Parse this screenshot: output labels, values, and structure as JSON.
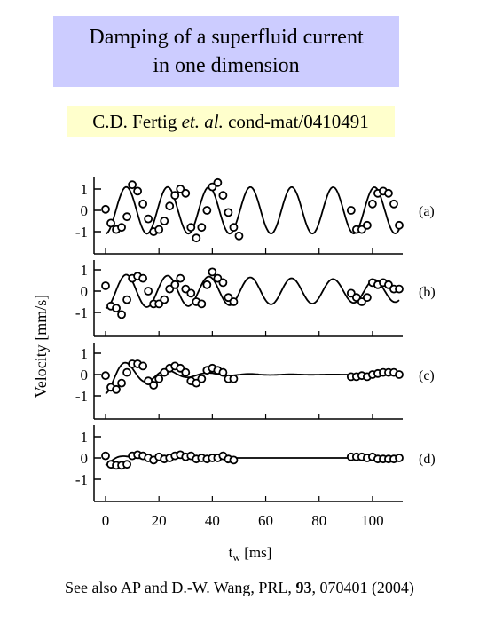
{
  "title": {
    "line1": "Damping of a superfluid current",
    "line2": "in one dimension"
  },
  "citation": {
    "authors": "C.D. Fertig",
    "etal": "et. al.",
    "ref": "cond-mat/0410491"
  },
  "footer": {
    "prefix": "See also AP and D.-W. Wang, PRL, ",
    "volume": "93",
    "suffix": ", 070401 (2004)"
  },
  "chart_data": {
    "type": "line",
    "xlabel": "t",
    "xlabel_sub": "w",
    "xlabel_unit": "[ms]",
    "ylabel": "Velocity",
    "ylabel_unit": "[mm/s]",
    "xlim": [
      0,
      110
    ],
    "ylim": [
      -1.5,
      1.5
    ],
    "xticks": [
      "0",
      "20",
      "40",
      "60",
      "80",
      "100"
    ],
    "yticks": [
      "1",
      "0",
      "-1"
    ],
    "panels": [
      {
        "label": "(a)",
        "fit": {
          "amplitude": 1.1,
          "decay_ms": 10000,
          "period_ms": 15.5,
          "phase": 1.57,
          "offset": 0
        },
        "points": [
          [
            0,
            0.05
          ],
          [
            2,
            -0.6
          ],
          [
            4,
            -0.9
          ],
          [
            6,
            -0.8
          ],
          [
            8,
            -0.3
          ],
          [
            10,
            1.2
          ],
          [
            12,
            0.9
          ],
          [
            14,
            0.3
          ],
          [
            16,
            -0.4
          ],
          [
            18,
            -1.0
          ],
          [
            20,
            -0.9
          ],
          [
            22,
            -0.5
          ],
          [
            24,
            0.2
          ],
          [
            26,
            0.7
          ],
          [
            28,
            1.0
          ],
          [
            30,
            0.8
          ],
          [
            32,
            -0.8
          ],
          [
            34,
            -1.3
          ],
          [
            36,
            -0.8
          ],
          [
            38,
            0
          ],
          [
            40,
            1.1
          ],
          [
            42,
            1.3
          ],
          [
            44,
            0.7
          ],
          [
            46,
            -0.1
          ],
          [
            48,
            -0.8
          ],
          [
            50,
            -1.2
          ],
          [
            92,
            0
          ],
          [
            94,
            -0.9
          ],
          [
            96,
            -0.9
          ],
          [
            98,
            -0.7
          ],
          [
            100,
            0.3
          ],
          [
            102,
            0.8
          ],
          [
            104,
            0.9
          ],
          [
            106,
            0.8
          ],
          [
            108,
            0.3
          ],
          [
            110,
            -0.7
          ]
        ]
      },
      {
        "label": "(b)",
        "fit": {
          "amplitude": 0.8,
          "decay_ms": 250,
          "period_ms": 15.5,
          "phase": 1.57,
          "offset": 0
        },
        "points": [
          [
            0,
            0.25
          ],
          [
            2,
            -0.7
          ],
          [
            4,
            -0.8
          ],
          [
            6,
            -1.1
          ],
          [
            8,
            -0.4
          ],
          [
            10,
            0.6
          ],
          [
            12,
            0.7
          ],
          [
            14,
            0.6
          ],
          [
            16,
            0
          ],
          [
            18,
            -0.6
          ],
          [
            20,
            -0.6
          ],
          [
            22,
            -0.4
          ],
          [
            24,
            0.1
          ],
          [
            26,
            0.3
          ],
          [
            28,
            0.6
          ],
          [
            30,
            0.1
          ],
          [
            32,
            -0.1
          ],
          [
            34,
            -0.5
          ],
          [
            36,
            -0.6
          ],
          [
            38,
            0.3
          ],
          [
            40,
            0.9
          ],
          [
            42,
            0.6
          ],
          [
            44,
            0.4
          ],
          [
            46,
            -0.3
          ],
          [
            48,
            -0.5
          ],
          [
            92,
            -0.1
          ],
          [
            94,
            -0.3
          ],
          [
            96,
            -0.5
          ],
          [
            98,
            -0.3
          ],
          [
            100,
            0.4
          ],
          [
            102,
            0.3
          ],
          [
            104,
            0.4
          ],
          [
            106,
            0.3
          ],
          [
            108,
            0.1
          ],
          [
            110,
            0.1
          ]
        ]
      },
      {
        "label": "(c)",
        "fit": {
          "amplitude": 0.9,
          "decay_ms": 16,
          "period_ms": 15.5,
          "phase": 1.57,
          "offset": 0
        },
        "points": [
          [
            0,
            -0.05
          ],
          [
            2,
            -0.6
          ],
          [
            4,
            -0.7
          ],
          [
            6,
            -0.4
          ],
          [
            8,
            0.1
          ],
          [
            10,
            0.5
          ],
          [
            12,
            0.5
          ],
          [
            14,
            0.4
          ],
          [
            16,
            -0.3
          ],
          [
            18,
            -0.5
          ],
          [
            20,
            -0.2
          ],
          [
            22,
            0.1
          ],
          [
            24,
            0.3
          ],
          [
            26,
            0.4
          ],
          [
            28,
            0.3
          ],
          [
            30,
            0.1
          ],
          [
            32,
            -0.3
          ],
          [
            34,
            -0.4
          ],
          [
            36,
            -0.2
          ],
          [
            38,
            0.2
          ],
          [
            40,
            0.3
          ],
          [
            42,
            0.2
          ],
          [
            44,
            0.1
          ],
          [
            46,
            -0.2
          ],
          [
            48,
            -0.2
          ],
          [
            92,
            -0.1
          ],
          [
            94,
            -0.1
          ],
          [
            96,
            -0.05
          ],
          [
            98,
            -0.1
          ],
          [
            100,
            0
          ],
          [
            102,
            0.05
          ],
          [
            104,
            0.1
          ],
          [
            106,
            0.1
          ],
          [
            108,
            0.1
          ],
          [
            110,
            0
          ]
        ]
      },
      {
        "label": "(d)",
        "fit": {
          "amplitude": 0.35,
          "decay_ms": 5,
          "period_ms": 15.5,
          "phase": 1.57,
          "offset": 0
        },
        "points": [
          [
            0,
            0.1
          ],
          [
            2,
            -0.3
          ],
          [
            4,
            -0.35
          ],
          [
            6,
            -0.35
          ],
          [
            8,
            -0.3
          ],
          [
            10,
            0.1
          ],
          [
            12,
            0.15
          ],
          [
            14,
            0.1
          ],
          [
            16,
            0.0
          ],
          [
            18,
            -0.1
          ],
          [
            20,
            0.05
          ],
          [
            22,
            -0.05
          ],
          [
            24,
            0.0
          ],
          [
            26,
            0.1
          ],
          [
            28,
            0.15
          ],
          [
            30,
            0.05
          ],
          [
            32,
            0.1
          ],
          [
            34,
            -0.05
          ],
          [
            36,
            0.0
          ],
          [
            38,
            -0.05
          ],
          [
            40,
            0.0
          ],
          [
            42,
            0.0
          ],
          [
            44,
            0.1
          ],
          [
            46,
            -0.05
          ],
          [
            48,
            -0.1
          ],
          [
            92,
            0.05
          ],
          [
            94,
            0.05
          ],
          [
            96,
            0.05
          ],
          [
            98,
            0.0
          ],
          [
            100,
            0.05
          ],
          [
            102,
            -0.05
          ],
          [
            104,
            -0.05
          ],
          [
            106,
            -0.05
          ],
          [
            108,
            -0.05
          ],
          [
            110,
            0.0
          ]
        ]
      }
    ]
  }
}
